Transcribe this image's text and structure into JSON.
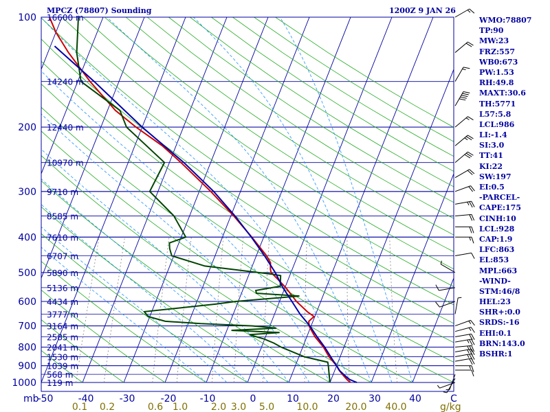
{
  "header": {
    "station_title": "MPCZ (78807) Sounding",
    "time_label": "1200Z  9 JAN 26"
  },
  "chart_data": {
    "type": "line",
    "title": "MPCZ (78807) Sounding",
    "subtitle": "1200Z  9 JAN 26",
    "y_axis": {
      "unit_label": "mb",
      "range": [
        1000,
        100
      ],
      "scale": "log",
      "tick_labels": [
        "100",
        "200",
        "300",
        "400",
        "500",
        "600",
        "700",
        "800",
        "900",
        "1000"
      ]
    },
    "x_axis": {
      "range": [
        -50,
        50
      ],
      "tick_labels": [
        "-50",
        "-40",
        "-30",
        "-20",
        "-10",
        "0",
        "10",
        "20",
        "30",
        "40",
        "C"
      ]
    },
    "mixing_ratio_axis": {
      "unit_label": "g/kg",
      "tick_labels": [
        "0.1",
        "0.2",
        "0.6",
        "1.0",
        "2.0",
        "3.0",
        "5.0",
        "10.0",
        "20.0",
        "40.0"
      ],
      "values": [
        0.1,
        0.2,
        0.6,
        1.0,
        2.0,
        3.0,
        5.0,
        10.0,
        20.0,
        40.0
      ]
    },
    "height_levels": [
      {
        "p": 100,
        "label": "16600 m"
      },
      {
        "p": 150,
        "label": "14240 m"
      },
      {
        "p": 200,
        "label": "12440 m"
      },
      {
        "p": 250,
        "label": "10970 m"
      },
      {
        "p": 300,
        "label": "9710 m"
      },
      {
        "p": 350,
        "label": "8585 m"
      },
      {
        "p": 400,
        "label": "7610 m"
      },
      {
        "p": 450,
        "label": "6707 m"
      },
      {
        "p": 500,
        "label": "5890 m"
      },
      {
        "p": 550,
        "label": "5136 m"
      },
      {
        "p": 600,
        "label": "4434 m"
      },
      {
        "p": 650,
        "label": "3777 m"
      },
      {
        "p": 700,
        "label": "3164 m"
      },
      {
        "p": 750,
        "label": "2585 m"
      },
      {
        "p": 800,
        "label": "2041 m"
      },
      {
        "p": 850,
        "label": "1530 m"
      },
      {
        "p": 900,
        "label": "1039 m"
      },
      {
        "p": 950,
        "label": "568 m"
      },
      {
        "p": 1000,
        "label": "119 m"
      }
    ],
    "series": [
      {
        "name": "Temperature",
        "color": "#cc0000",
        "points": [
          {
            "p": 1000,
            "t": 25.0
          },
          {
            "p": 985,
            "t": 24.0
          },
          {
            "p": 950,
            "t": 22.2
          },
          {
            "p": 925,
            "t": 21.0
          },
          {
            "p": 900,
            "t": 20.0
          },
          {
            "p": 850,
            "t": 17.3
          },
          {
            "p": 800,
            "t": 15.0
          },
          {
            "p": 750,
            "t": 12.0
          },
          {
            "p": 720,
            "t": 10.5
          },
          {
            "p": 700,
            "t": 9.5
          },
          {
            "p": 680,
            "t": 9.0
          },
          {
            "p": 660,
            "t": 9.8
          },
          {
            "p": 640,
            "t": 7.7
          },
          {
            "p": 600,
            "t": 4.1
          },
          {
            "p": 550,
            "t": 0.2
          },
          {
            "p": 520,
            "t": -2.7
          },
          {
            "p": 500,
            "t": -4.8
          },
          {
            "p": 490,
            "t": -5.3
          },
          {
            "p": 470,
            "t": -5.9
          },
          {
            "p": 450,
            "t": -7.5
          },
          {
            "p": 400,
            "t": -12.9
          },
          {
            "p": 350,
            "t": -19.3
          },
          {
            "p": 300,
            "t": -27.2
          },
          {
            "p": 250,
            "t": -37.2
          },
          {
            "p": 225,
            "t": -43.3
          },
          {
            "p": 200,
            "t": -51.5
          },
          {
            "p": 180,
            "t": -58.1
          },
          {
            "p": 150,
            "t": -67.0
          },
          {
            "p": 125,
            "t": -75.0
          },
          {
            "p": 110,
            "t": -80.0
          },
          {
            "p": 100,
            "t": -83.0
          }
        ]
      },
      {
        "name": "Dewpoint",
        "color": "#004400",
        "points": [
          {
            "p": 1000,
            "t": 20.0
          },
          {
            "p": 950,
            "t": 19.0
          },
          {
            "p": 900,
            "t": 18.0
          },
          {
            "p": 880,
            "t": 17.5
          },
          {
            "p": 850,
            "t": 11.3
          },
          {
            "p": 800,
            "t": 4.7
          },
          {
            "p": 780,
            "t": 2.6
          },
          {
            "p": 760,
            "t": -0.2
          },
          {
            "p": 740,
            "t": -4.1
          },
          {
            "p": 730,
            "t": 3.0
          },
          {
            "p": 720,
            "t": -8.9
          },
          {
            "p": 710,
            "t": 1.8
          },
          {
            "p": 700,
            "t": -4.2
          },
          {
            "p": 690,
            "t": -17.0
          },
          {
            "p": 680,
            "t": -25.8
          },
          {
            "p": 660,
            "t": -30.4
          },
          {
            "p": 640,
            "t": -31.8
          },
          {
            "p": 610,
            "t": -15.1
          },
          {
            "p": 600,
            "t": -10.6
          },
          {
            "p": 580,
            "t": 4.3
          },
          {
            "p": 570,
            "t": -6.4
          },
          {
            "p": 560,
            "t": -6.8
          },
          {
            "p": 545,
            "t": -1.3
          },
          {
            "p": 510,
            "t": -2.2
          },
          {
            "p": 505,
            "t": -4.5
          },
          {
            "p": 480,
            "t": -21.5
          },
          {
            "p": 450,
            "t": -30.5
          },
          {
            "p": 430,
            "t": -31.7
          },
          {
            "p": 415,
            "t": -32.3
          },
          {
            "p": 400,
            "t": -28.9
          },
          {
            "p": 350,
            "t": -33.8
          },
          {
            "p": 300,
            "t": -42.0
          },
          {
            "p": 250,
            "t": -41.2
          },
          {
            "p": 200,
            "t": -53.8
          },
          {
            "p": 180,
            "t": -57.0
          },
          {
            "p": 150,
            "t": -69.2
          },
          {
            "p": 125,
            "t": -73.0
          },
          {
            "p": 100,
            "t": -76.0
          }
        ]
      },
      {
        "name": "Parcel",
        "color": "#0000aa",
        "points": [
          {
            "p": 1000,
            "t": 26.5
          },
          {
            "p": 980,
            "t": 24.3
          },
          {
            "p": 950,
            "t": 22.5
          },
          {
            "p": 928,
            "t": 21.2
          },
          {
            "p": 900,
            "t": 20.0
          },
          {
            "p": 863,
            "t": 18.3
          },
          {
            "p": 850,
            "t": 17.7
          },
          {
            "p": 800,
            "t": 15.3
          },
          {
            "p": 750,
            "t": 12.5
          },
          {
            "p": 700,
            "t": 9.7
          },
          {
            "p": 650,
            "t": 6.2
          },
          {
            "p": 600,
            "t": 3.0
          },
          {
            "p": 550,
            "t": -0.5
          },
          {
            "p": 500,
            "t": -3.8
          },
          {
            "p": 450,
            "t": -8.0
          },
          {
            "p": 400,
            "t": -13.0
          },
          {
            "p": 350,
            "t": -19.0
          },
          {
            "p": 300,
            "t": -26.5
          },
          {
            "p": 250,
            "t": -36.5
          },
          {
            "p": 200,
            "t": -50.0
          },
          {
            "p": 150,
            "t": -66.0
          },
          {
            "p": 120,
            "t": -79.0
          }
        ]
      }
    ],
    "wind_profile": [
      {
        "p": 1000,
        "dir": 250,
        "kt": 5
      },
      {
        "p": 975,
        "dir": 210,
        "kt": 5
      },
      {
        "p": 950,
        "dir": 200,
        "kt": 5
      },
      {
        "p": 925,
        "dir": 90,
        "kt": 10
      },
      {
        "p": 900,
        "dir": 90,
        "kt": 15
      },
      {
        "p": 875,
        "dir": 80,
        "kt": 20
      },
      {
        "p": 850,
        "dir": 80,
        "kt": 25
      },
      {
        "p": 825,
        "dir": 80,
        "kt": 25
      },
      {
        "p": 800,
        "dir": 85,
        "kt": 25
      },
      {
        "p": 775,
        "dir": 80,
        "kt": 25
      },
      {
        "p": 750,
        "dir": 80,
        "kt": 20
      },
      {
        "p": 725,
        "dir": 75,
        "kt": 15
      },
      {
        "p": 700,
        "dir": 70,
        "kt": 15
      },
      {
        "p": 650,
        "dir": 10,
        "kt": 5
      },
      {
        "p": 600,
        "dir": 250,
        "kt": 10
      },
      {
        "p": 550,
        "dir": 260,
        "kt": 10
      },
      {
        "p": 500,
        "dir": 300,
        "kt": 5
      },
      {
        "p": 450,
        "dir": 80,
        "kt": 10
      },
      {
        "p": 400,
        "dir": 90,
        "kt": 15
      },
      {
        "p": 375,
        "dir": 90,
        "kt": 20
      },
      {
        "p": 350,
        "dir": 85,
        "kt": 20
      },
      {
        "p": 325,
        "dir": 80,
        "kt": 25
      },
      {
        "p": 300,
        "dir": 70,
        "kt": 20
      },
      {
        "p": 275,
        "dir": 60,
        "kt": 20
      },
      {
        "p": 250,
        "dir": 50,
        "kt": 30
      },
      {
        "p": 225,
        "dir": 50,
        "kt": 25
      },
      {
        "p": 200,
        "dir": 50,
        "kt": 15
      },
      {
        "p": 175,
        "dir": 30,
        "kt": 50
      },
      {
        "p": 150,
        "dir": 30,
        "kt": 15
      },
      {
        "p": 125,
        "dir": 50,
        "kt": 20
      },
      {
        "p": 100,
        "dir": 60,
        "kt": 15
      }
    ]
  },
  "indices": [
    "WMO:78807",
    "TP:90",
    "MW:23",
    "FRZ:557",
    "WB0:673",
    "PW:1.53",
    "RH:49.8",
    "MAXT:30.6",
    "TH:5771",
    "L57:5.8",
    "LCL:986",
    "LI:-1.4",
    "SI:3.0",
    "TT:41",
    "KI:22",
    "SW:197",
    "EI:0.5",
    "-PARCEL-",
    "CAPE:175",
    "CINH:10",
    "LCL:928",
    "CAP:1.9",
    "LFC:863",
    "EL:853",
    "MPL:663",
    "-WIND-",
    "STM:46/8",
    "HEL:23",
    "SHR+:0.0",
    "SRDS:-16",
    "EHI:0.1",
    "BRN:143.0",
    "BSHR:1"
  ],
  "colors": {
    "isobar": "#0000a0",
    "isotherm": "#0000a0",
    "dry_adiabat": "#22aa22",
    "moist_adiabat": "#1e90ff",
    "mixing_ratio": "#808080",
    "axis_text": "#0000a0",
    "mixing_text": "#807000"
  }
}
